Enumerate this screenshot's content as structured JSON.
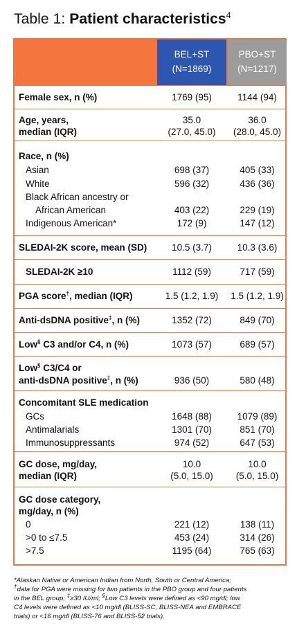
{
  "title": {
    "prefix": "Table 1: ",
    "main": "Patient characteristics",
    "ref": "4"
  },
  "columns": {
    "bel": {
      "name": "BEL+ST",
      "n": "(N=1869)"
    },
    "pbo": {
      "name": "PBO+ST",
      "n": "(N=1217)"
    }
  },
  "rows": {
    "female": {
      "label": "Female sex, n (%)",
      "bel": "1769 (95)",
      "pbo": "1144 (94)"
    },
    "age": {
      "label1": "Age, years,",
      "label2": "median (IQR)",
      "bel1": "35.0",
      "bel2": "(27.0, 45.0)",
      "pbo1": "36.0",
      "pbo2": "(28.0, 45.0)"
    },
    "race": {
      "label": "Race, n (%)",
      "asian": {
        "label": "Asian",
        "bel": "698 (37)",
        "pbo": "405 (33)"
      },
      "white": {
        "label": "White",
        "bel": "596 (32)",
        "pbo": "436 (36)"
      },
      "black": {
        "label1": "Black African ancestry or",
        "label2": "African American",
        "bel": "403 (22)",
        "pbo": "229 (19)"
      },
      "indig": {
        "label": "Indigenous American*",
        "bel": "172 (9)",
        "pbo": "147 (12)"
      }
    },
    "sledai": {
      "label": "SLEDAI-2K score, mean (SD)",
      "bel": "10.5 (3.7)",
      "pbo": "10.3 (3.6)"
    },
    "sledai10": {
      "label": "SLEDAI-2K ≥10",
      "bel": "1112 (59)",
      "pbo": "717 (59)"
    },
    "pga": {
      "label_a": "PGA score",
      "sup": "†",
      "label_b": ", median (IQR)",
      "bel": "1.5 (1.2, 1.9)",
      "pbo": "1.5 (1.2, 1.9)"
    },
    "dsdna": {
      "label_a": "Anti-dsDNA positive",
      "sup": "‡",
      "label_b": ", n (%)",
      "bel": "1352 (72)",
      "pbo": "849 (70)"
    },
    "lowc": {
      "label_a": "Low",
      "sup": "§",
      "label_b": " C3 and/or C4, n (%)",
      "bel": "1073 (57)",
      "pbo": "689 (57)"
    },
    "lowc_ds": {
      "l1_a": "Low",
      "l1_sup": "§",
      "l1_b": " C3/C4 or",
      "l2_a": "anti-dsDNA positive",
      "l2_sup": "‡",
      "l2_b": ", n (%)",
      "bel": "936 (50)",
      "pbo": "580 (48)"
    },
    "conc": {
      "label": "Concomitant SLE medication",
      "gcs": {
        "label": "GCs",
        "bel": "1648 (88)",
        "pbo": "1079 (89)"
      },
      "anti": {
        "label": "Antimalarials",
        "bel": "1301 (70)",
        "pbo": "851 (70)"
      },
      "immuno": {
        "label": "Immunosuppressants",
        "bel": "974 (52)",
        "pbo": "647 (53)"
      }
    },
    "gcdose": {
      "label1": "GC dose, mg/day,",
      "label2": "median (IQR)",
      "bel1": "10.0",
      "bel2": "(5.0, 15.0)",
      "pbo1": "10.0",
      "pbo2": "(5.0, 15.0)"
    },
    "gccat": {
      "label1": "GC dose category,",
      "label2": "mg/day, n (%)",
      "c0": {
        "label": "0",
        "bel": "221 (12)",
        "pbo": "138 (11)"
      },
      "c1": {
        "label": ">0 to ≤7.5",
        "bel": "453 (24)",
        "pbo": "314 (26)"
      },
      "c2": {
        "label": ">7.5",
        "bel": "1195 (64)",
        "pbo": "765 (63)"
      }
    }
  },
  "footnotes": {
    "l1": "*Alaskan Native or American Indian from North, South or Central America;",
    "l2_sup": "†",
    "l2": "data for PGA were missing for two patients in the PBO group and four patients",
    "l3_a": "in the BEL group; ",
    "l3_sup1": "‡",
    "l3_b": "≥30 IU/ml; ",
    "l3_sup2": "§",
    "l3_c": "Low C3 levels were defined as <90 mg/dl; low",
    "l4": "C4 levels were defined as <10 mg/dl (BLISS-SC, BLISS-NEA and EMBRACE",
    "l5": "trials) or <16 mg/dl (BLISS-76 and BLISS-52 trials)."
  }
}
